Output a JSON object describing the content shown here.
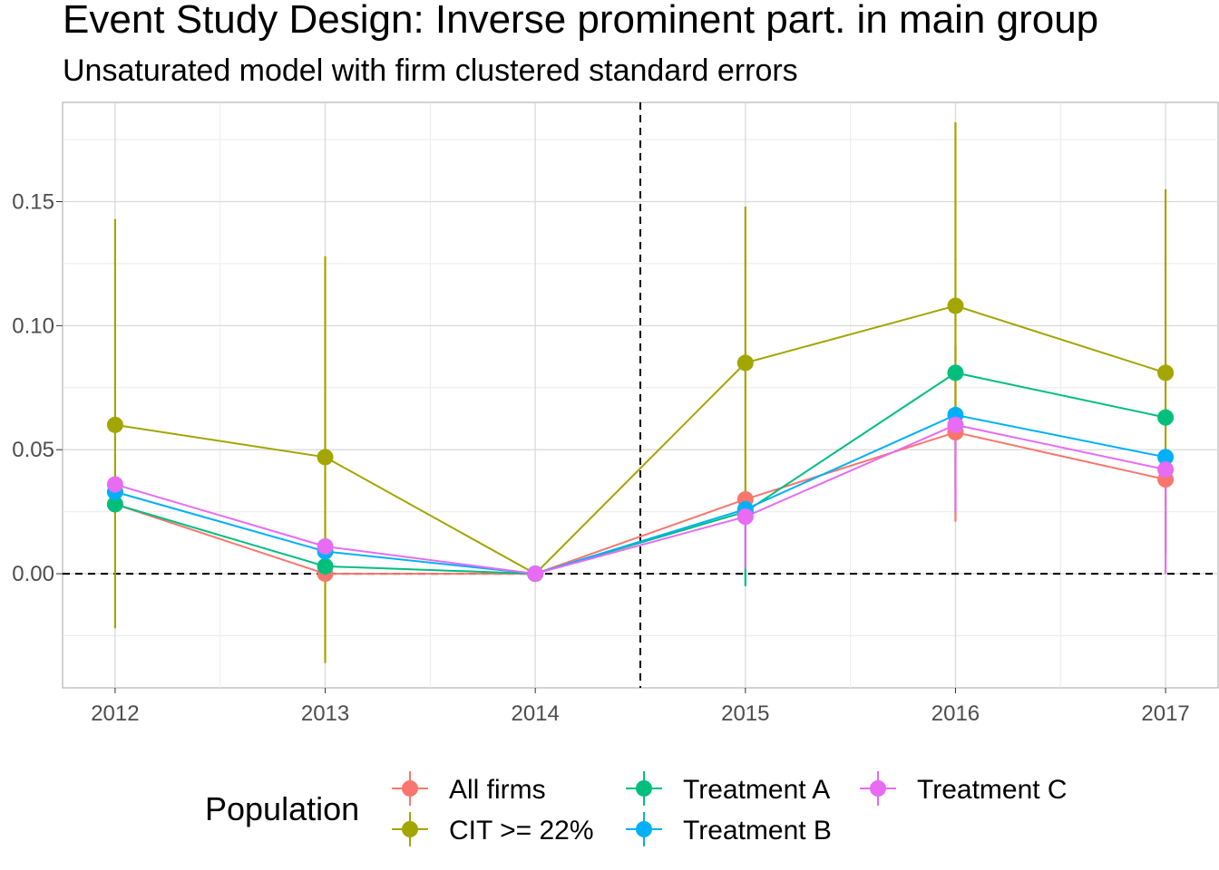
{
  "chart_data": {
    "type": "line",
    "title": "Event Study Design: Inverse prominent part. in main group",
    "subtitle": "Unsaturated model with firm clustered standard errors",
    "xlabel": "",
    "ylabel": "",
    "x": [
      2012,
      2013,
      2014,
      2015,
      2016,
      2017
    ],
    "x_tick_labels": [
      "2012",
      "2013",
      "2014",
      "2015",
      "2016",
      "2017"
    ],
    "y_tick_values": [
      0.0,
      0.05,
      0.1,
      0.15
    ],
    "y_tick_labels": [
      "0.00",
      "0.05",
      "0.10",
      "0.15"
    ],
    "xlim": [
      2011.75,
      2017.25
    ],
    "ylim": [
      -0.046,
      0.19
    ],
    "reference_lines": {
      "horizontal_y": 0,
      "vertical_x": 2014.5,
      "style": "dashed"
    },
    "grid": true,
    "legend": {
      "title": "Population",
      "position": "bottom"
    },
    "series": [
      {
        "name": "All firms",
        "color": "#F8766D",
        "values": [
          0.028,
          0.0,
          0.0,
          0.03,
          0.057,
          0.038
        ],
        "ci_low": [
          null,
          null,
          null,
          null,
          0.021,
          null
        ],
        "ci_high": [
          null,
          null,
          null,
          null,
          0.092,
          null
        ]
      },
      {
        "name": "CIT >= 22%",
        "color": "#A3A500",
        "values": [
          0.06,
          0.047,
          0.0,
          0.085,
          0.108,
          0.081
        ],
        "ci_low": [
          -0.022,
          -0.036,
          null,
          0.023,
          0.034,
          0.008
        ],
        "ci_high": [
          0.143,
          0.128,
          null,
          0.148,
          0.182,
          0.155
        ]
      },
      {
        "name": "Treatment A",
        "color": "#00BF7D",
        "values": [
          0.028,
          0.003,
          0.0,
          0.025,
          0.081,
          0.063
        ],
        "ci_low": [
          null,
          null,
          null,
          -0.005,
          null,
          null
        ],
        "ci_high": [
          null,
          null,
          null,
          null,
          null,
          null
        ]
      },
      {
        "name": "Treatment B",
        "color": "#00B0F6",
        "values": [
          0.033,
          0.009,
          0.0,
          0.026,
          0.064,
          0.047
        ],
        "ci_low": [
          null,
          null,
          null,
          null,
          null,
          null
        ],
        "ci_high": [
          null,
          null,
          null,
          null,
          null,
          null
        ]
      },
      {
        "name": "Treatment C",
        "color": "#E76BF3",
        "values": [
          0.036,
          0.011,
          0.0,
          0.023,
          0.06,
          0.042
        ],
        "ci_low": [
          null,
          null,
          null,
          0.002,
          0.025,
          0.0
        ],
        "ci_high": [
          null,
          null,
          null,
          null,
          null,
          null
        ]
      }
    ]
  }
}
